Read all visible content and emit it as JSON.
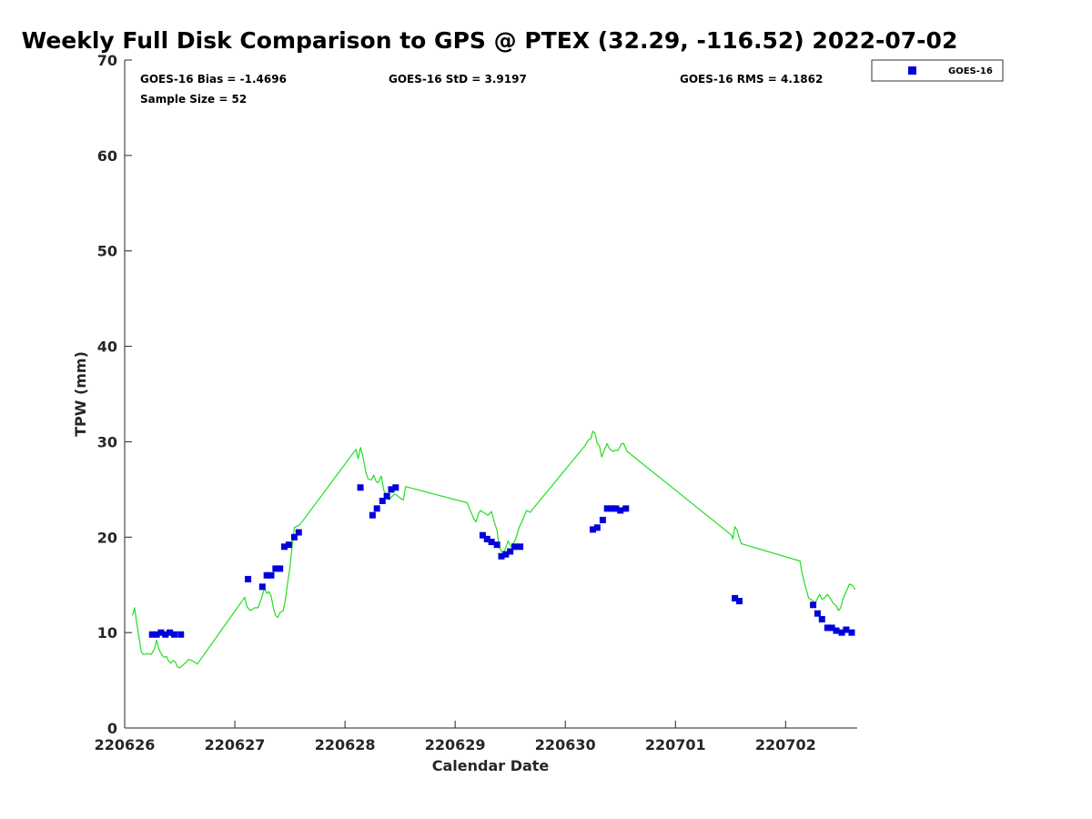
{
  "chart_data": {
    "type": "scatter",
    "title": "Weekly Full Disk Comparison to GPS @ PTEX (32.29, -116.52) 2022-07-02",
    "xlabel": "Calendar Date",
    "ylabel": "TPW (mm)",
    "xlim": [
      0,
      6.65
    ],
    "ylim": [
      0,
      70
    ],
    "x_ticks": [
      0,
      1,
      2,
      3,
      4,
      5,
      6
    ],
    "x_tick_labels": [
      "220626",
      "220627",
      "220628",
      "220629",
      "220630",
      "220701",
      "220702"
    ],
    "y_ticks": [
      0,
      10,
      20,
      30,
      40,
      50,
      60,
      70
    ],
    "y_tick_labels": [
      "0",
      "10",
      "20",
      "30",
      "40",
      "50",
      "60",
      "70"
    ],
    "grid": false,
    "legend_position": "outside-top-right",
    "stats": {
      "bias": "GOES-16 Bias = -1.4696",
      "std": "GOES-16 StD = 3.9197",
      "rms": "GOES-16 RMS = 4.1862",
      "sample": "Sample Size = 52"
    },
    "series": [
      {
        "name": "GOES-16",
        "color": "#0000dd",
        "marker": "square",
        "points": [
          [
            0.25,
            9.8
          ],
          [
            0.29,
            9.8
          ],
          [
            0.33,
            10.0
          ],
          [
            0.37,
            9.8
          ],
          [
            0.41,
            10.0
          ],
          [
            0.45,
            9.8
          ],
          [
            0.51,
            9.8
          ],
          [
            1.12,
            15.6
          ],
          [
            1.25,
            14.8
          ],
          [
            1.29,
            16.0
          ],
          [
            1.33,
            16.0
          ],
          [
            1.37,
            16.7
          ],
          [
            1.41,
            16.7
          ],
          [
            1.45,
            19.0
          ],
          [
            1.49,
            19.2
          ],
          [
            1.54,
            20.0
          ],
          [
            1.58,
            20.5
          ],
          [
            2.14,
            25.2
          ],
          [
            2.25,
            22.3
          ],
          [
            2.29,
            23.0
          ],
          [
            2.34,
            23.8
          ],
          [
            2.38,
            24.3
          ],
          [
            2.42,
            25.0
          ],
          [
            2.46,
            25.2
          ],
          [
            3.25,
            20.2
          ],
          [
            3.29,
            19.8
          ],
          [
            3.33,
            19.5
          ],
          [
            3.38,
            19.2
          ],
          [
            3.42,
            18.0
          ],
          [
            3.46,
            18.2
          ],
          [
            3.5,
            18.5
          ],
          [
            3.54,
            19.0
          ],
          [
            3.59,
            19.0
          ],
          [
            4.25,
            20.8
          ],
          [
            4.29,
            21.0
          ],
          [
            4.34,
            21.8
          ],
          [
            4.38,
            23.0
          ],
          [
            4.42,
            23.0
          ],
          [
            4.46,
            23.0
          ],
          [
            4.5,
            22.8
          ],
          [
            4.55,
            23.0
          ],
          [
            5.54,
            13.6
          ],
          [
            5.58,
            13.3
          ],
          [
            6.25,
            12.9
          ],
          [
            6.29,
            12.0
          ],
          [
            6.33,
            11.4
          ],
          [
            6.38,
            10.5
          ],
          [
            6.42,
            10.5
          ],
          [
            6.46,
            10.2
          ],
          [
            6.51,
            10.0
          ],
          [
            6.55,
            10.3
          ],
          [
            6.6,
            10.0
          ]
        ]
      },
      {
        "name": "",
        "color": "#22dd22",
        "marker": "line",
        "points": [
          [
            0.07,
            11.8
          ],
          [
            0.09,
            12.6
          ],
          [
            0.11,
            11.0
          ],
          [
            0.13,
            9.5
          ],
          [
            0.15,
            8.0
          ],
          [
            0.17,
            7.7
          ],
          [
            0.21,
            7.8
          ],
          [
            0.24,
            7.7
          ],
          [
            0.27,
            8.3
          ],
          [
            0.29,
            9.2
          ],
          [
            0.31,
            8.3
          ],
          [
            0.34,
            7.6
          ],
          [
            0.36,
            7.4
          ],
          [
            0.38,
            7.5
          ],
          [
            0.4,
            7.0
          ],
          [
            0.42,
            6.8
          ],
          [
            0.44,
            7.1
          ],
          [
            0.46,
            6.9
          ],
          [
            0.48,
            6.4
          ],
          [
            0.5,
            6.3
          ],
          [
            0.52,
            6.5
          ],
          [
            0.55,
            6.8
          ],
          [
            0.58,
            7.2
          ],
          [
            0.62,
            7.0
          ],
          [
            0.66,
            6.7
          ],
          [
            1.09,
            13.7
          ],
          [
            1.11,
            12.7
          ],
          [
            1.14,
            12.3
          ],
          [
            1.18,
            12.6
          ],
          [
            1.21,
            12.6
          ],
          [
            1.24,
            13.5
          ],
          [
            1.27,
            14.7
          ],
          [
            1.29,
            14.1
          ],
          [
            1.31,
            14.3
          ],
          [
            1.33,
            13.8
          ],
          [
            1.35,
            12.6
          ],
          [
            1.37,
            11.8
          ],
          [
            1.39,
            11.6
          ],
          [
            1.41,
            12.1
          ],
          [
            1.44,
            12.3
          ],
          [
            1.46,
            13.5
          ],
          [
            1.48,
            15.3
          ],
          [
            1.5,
            16.8
          ],
          [
            1.52,
            19.0
          ],
          [
            1.54,
            21.0
          ],
          [
            1.59,
            21.3
          ],
          [
            2.1,
            29.2
          ],
          [
            2.12,
            28.2
          ],
          [
            2.14,
            29.4
          ],
          [
            2.16,
            28.6
          ],
          [
            2.19,
            26.8
          ],
          [
            2.21,
            26.1
          ],
          [
            2.24,
            26.0
          ],
          [
            2.26,
            26.5
          ],
          [
            2.28,
            25.9
          ],
          [
            2.3,
            25.7
          ],
          [
            2.33,
            26.4
          ],
          [
            2.35,
            25.0
          ],
          [
            2.37,
            24.5
          ],
          [
            2.4,
            23.9
          ],
          [
            2.43,
            24.3
          ],
          [
            2.45,
            24.5
          ],
          [
            2.47,
            24.4
          ],
          [
            2.5,
            24.1
          ],
          [
            2.53,
            23.9
          ],
          [
            2.55,
            25.3
          ],
          [
            3.11,
            23.6
          ],
          [
            3.13,
            23.0
          ],
          [
            3.17,
            21.9
          ],
          [
            3.19,
            21.6
          ],
          [
            3.21,
            22.4
          ],
          [
            3.23,
            22.8
          ],
          [
            3.27,
            22.5
          ],
          [
            3.3,
            22.3
          ],
          [
            3.33,
            22.7
          ],
          [
            3.35,
            21.8
          ],
          [
            3.38,
            20.7
          ],
          [
            3.4,
            19.0
          ],
          [
            3.42,
            18.5
          ],
          [
            3.44,
            18.4
          ],
          [
            3.46,
            18.9
          ],
          [
            3.48,
            19.6
          ],
          [
            3.51,
            19.0
          ],
          [
            3.55,
            19.8
          ],
          [
            3.58,
            21.0
          ],
          [
            3.61,
            21.7
          ],
          [
            3.63,
            22.3
          ],
          [
            3.65,
            22.8
          ],
          [
            3.68,
            22.6
          ],
          [
            4.18,
            29.6
          ],
          [
            4.21,
            30.2
          ],
          [
            4.23,
            30.3
          ],
          [
            4.25,
            31.1
          ],
          [
            4.27,
            30.9
          ],
          [
            4.29,
            29.8
          ],
          [
            4.31,
            29.6
          ],
          [
            4.33,
            28.4
          ],
          [
            4.36,
            29.3
          ],
          [
            4.38,
            29.8
          ],
          [
            4.4,
            29.3
          ],
          [
            4.43,
            29.0
          ],
          [
            4.45,
            29.1
          ],
          [
            4.48,
            29.1
          ],
          [
            4.51,
            29.8
          ],
          [
            4.53,
            29.8
          ],
          [
            4.56,
            29.0
          ],
          [
            5.51,
            20.2
          ],
          [
            5.52,
            19.8
          ],
          [
            5.54,
            21.1
          ],
          [
            5.56,
            20.7
          ],
          [
            5.58,
            19.9
          ],
          [
            5.6,
            19.3
          ],
          [
            6.13,
            17.5
          ],
          [
            6.15,
            16.2
          ],
          [
            6.18,
            14.8
          ],
          [
            6.21,
            13.6
          ],
          [
            6.24,
            13.4
          ],
          [
            6.27,
            13.1
          ],
          [
            6.29,
            13.6
          ],
          [
            6.31,
            14.0
          ],
          [
            6.33,
            13.5
          ],
          [
            6.35,
            13.6
          ],
          [
            6.38,
            14.0
          ],
          [
            6.4,
            13.7
          ],
          [
            6.43,
            13.1
          ],
          [
            6.46,
            12.8
          ],
          [
            6.48,
            12.3
          ],
          [
            6.5,
            12.6
          ],
          [
            6.52,
            13.5
          ],
          [
            6.55,
            14.3
          ],
          [
            6.58,
            15.1
          ],
          [
            6.61,
            14.9
          ],
          [
            6.63,
            14.5
          ]
        ]
      }
    ]
  }
}
